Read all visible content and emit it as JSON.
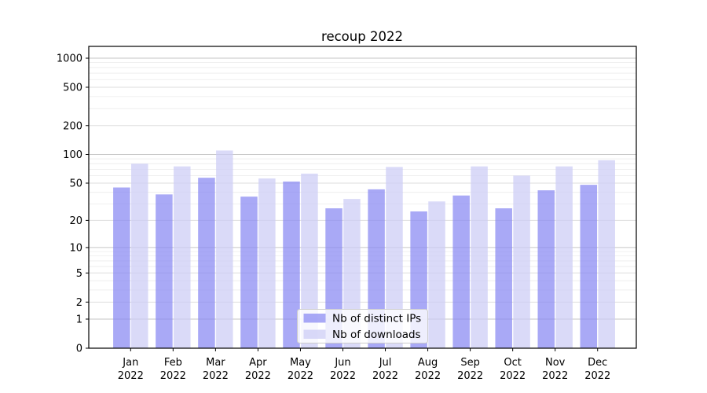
{
  "chart_data": {
    "type": "bar",
    "title": "recoup 2022",
    "categories": [
      "Jan",
      "Feb",
      "Mar",
      "Apr",
      "May",
      "Jun",
      "Jul",
      "Aug",
      "Sep",
      "Oct",
      "Nov",
      "Dec"
    ],
    "category_year": "2022",
    "series": [
      {
        "name": "Nb of distinct IPs",
        "color": "#8888f2",
        "fill_opacity": 0.72,
        "values": [
          45,
          38,
          57,
          36,
          52,
          27,
          43,
          25,
          37,
          27,
          42,
          48
        ]
      },
      {
        "name": "Nb of downloads",
        "color": "#ccccf5",
        "fill_opacity": 0.72,
        "values": [
          80,
          75,
          110,
          56,
          63,
          34,
          74,
          32,
          75,
          60,
          75,
          87
        ]
      }
    ],
    "y_axis": {
      "scale": "log1p",
      "max": 1325,
      "major_ticks": [
        0,
        1,
        2,
        5,
        10,
        20,
        50,
        100,
        200,
        500,
        1000
      ],
      "minor_ticks": [
        3,
        4,
        6,
        7,
        8,
        9,
        30,
        40,
        60,
        70,
        80,
        90,
        300,
        400,
        600,
        700,
        800,
        900
      ],
      "emphasized_gridlines": [
        1,
        10,
        100,
        1000
      ]
    },
    "grid": {
      "emphasized_color": "#c6c6c6",
      "major_color": "#dedede",
      "minor_color": "#ebebeb"
    },
    "legend": {
      "entries": [
        "Nb of distinct IPs",
        "Nb of downloads"
      ]
    },
    "colors": {
      "axis": "#000000",
      "text": "#000000",
      "background": "#ffffff"
    }
  }
}
